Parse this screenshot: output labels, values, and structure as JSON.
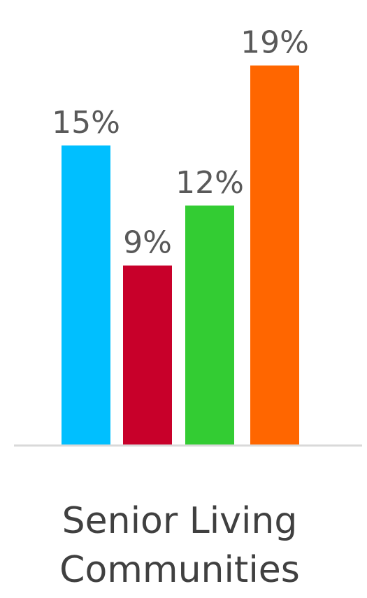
{
  "chart_data": {
    "type": "bar",
    "categories": [
      "Senior Living Communities"
    ],
    "category_label_lines": [
      "Senior Living",
      "Communities"
    ],
    "series": [
      {
        "values": [
          15
        ],
        "label": "15%",
        "color": "#00BFFF"
      },
      {
        "values": [
          9
        ],
        "label": "9%",
        "color": "#C8002A"
      },
      {
        "values": [
          12
        ],
        "label": "12%",
        "color": "#33CC33"
      },
      {
        "values": [
          19
        ],
        "label": "19%",
        "color": "#FF6600"
      }
    ],
    "value_unit": "%",
    "ylim": [
      0,
      20
    ],
    "grid": false,
    "legend": "none",
    "axis_color": "#D9D9D9"
  }
}
